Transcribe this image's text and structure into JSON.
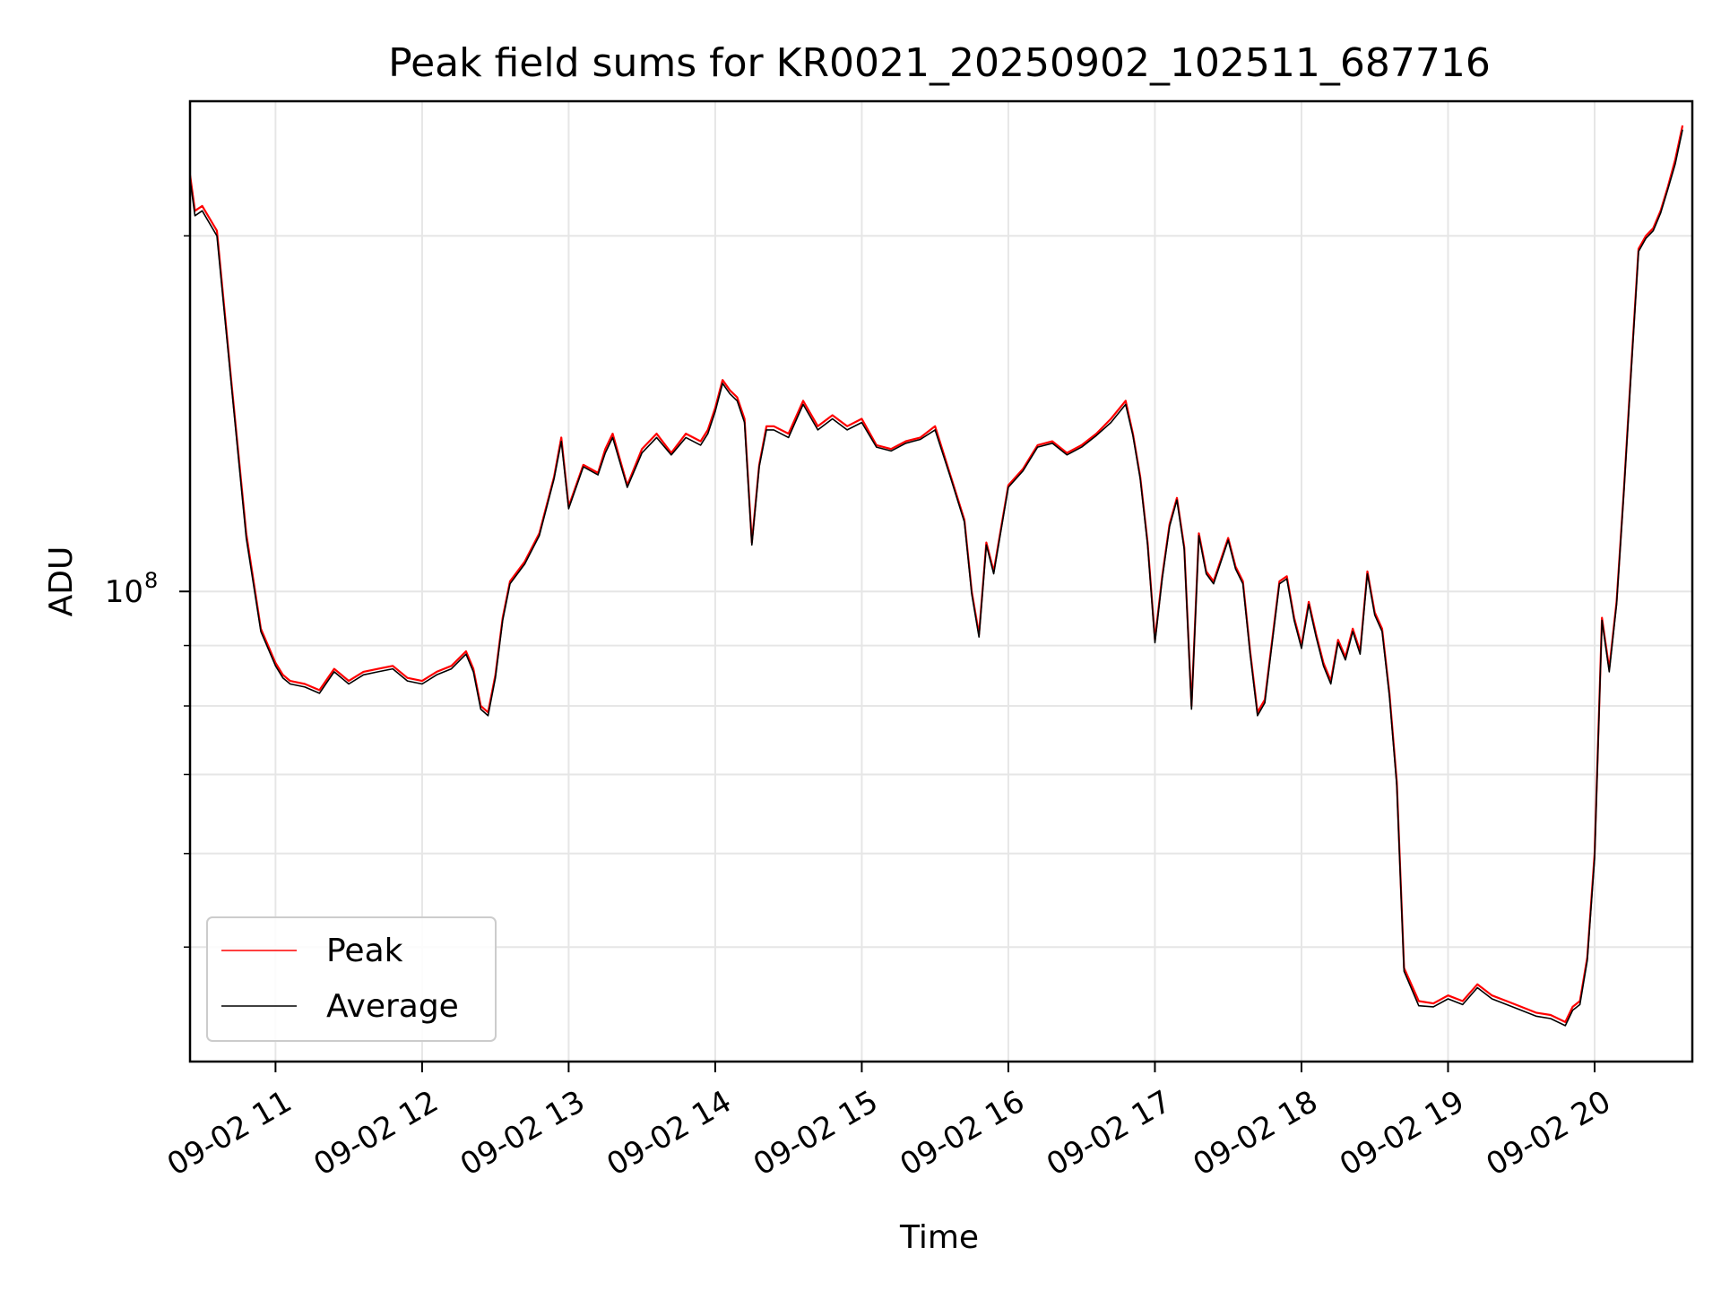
{
  "chart_data": {
    "type": "line",
    "title": "Peak field sums for KR0021_20250902_102511_687716",
    "xlabel": "Time",
    "ylabel": "ADU",
    "y_scale": "log",
    "x_range": [
      "09-02 10:25",
      "09-02 20:40"
    ],
    "ylim": [
      40000000,
      260000000
    ],
    "x_ticks": [
      "09-02 11",
      "09-02 12",
      "09-02 13",
      "09-02 14",
      "09-02 15",
      "09-02 16",
      "09-02 17",
      "09-02 18",
      "09-02 19",
      "09-02 20"
    ],
    "x_tick_hours": [
      11,
      12,
      13,
      14,
      15,
      16,
      17,
      18,
      19,
      20
    ],
    "y_major_tick": {
      "value": 100000000,
      "base": "10",
      "exp": "8"
    },
    "y_minor_ticks": [
      50000000,
      60000000,
      70000000,
      80000000,
      90000000,
      200000000
    ],
    "grid": true,
    "legend_position": "lower-left",
    "legend": [
      {
        "label": "Peak",
        "color": "#ff0000"
      },
      {
        "label": "Average",
        "color": "#000000"
      }
    ],
    "x_hours": [
      10.417,
      10.45,
      10.5,
      10.6,
      10.7,
      10.8,
      10.9,
      11.0,
      11.05,
      11.1,
      11.2,
      11.3,
      11.4,
      11.5,
      11.6,
      11.7,
      11.8,
      11.9,
      12.0,
      12.1,
      12.2,
      12.3,
      12.35,
      12.4,
      12.45,
      12.5,
      12.55,
      12.6,
      12.7,
      12.8,
      12.9,
      12.95,
      13.0,
      13.1,
      13.2,
      13.25,
      13.3,
      13.4,
      13.5,
      13.6,
      13.7,
      13.8,
      13.9,
      13.95,
      14.0,
      14.05,
      14.1,
      14.15,
      14.2,
      14.25,
      14.3,
      14.35,
      14.4,
      14.5,
      14.6,
      14.7,
      14.8,
      14.9,
      15.0,
      15.1,
      15.2,
      15.3,
      15.4,
      15.5,
      15.6,
      15.7,
      15.75,
      15.8,
      15.85,
      15.9,
      16.0,
      16.1,
      16.2,
      16.3,
      16.4,
      16.5,
      16.6,
      16.7,
      16.8,
      16.85,
      16.9,
      16.95,
      17.0,
      17.05,
      17.1,
      17.15,
      17.2,
      17.25,
      17.3,
      17.35,
      17.4,
      17.5,
      17.55,
      17.6,
      17.65,
      17.7,
      17.75,
      17.8,
      17.85,
      17.9,
      17.95,
      18.0,
      18.05,
      18.1,
      18.15,
      18.2,
      18.25,
      18.3,
      18.35,
      18.4,
      18.45,
      18.5,
      18.55,
      18.6,
      18.65,
      18.7,
      18.8,
      18.9,
      19.0,
      19.1,
      19.2,
      19.3,
      19.4,
      19.5,
      19.6,
      19.7,
      19.8,
      19.85,
      19.9,
      19.95,
      20.0,
      20.05,
      20.1,
      20.15,
      20.2,
      20.25,
      20.3,
      20.35,
      20.4,
      20.45,
      20.5,
      20.55,
      20.6,
      20.667
    ],
    "series": [
      {
        "name": "Peak",
        "color": "#ff0000",
        "values": [
          225000000,
          210000000,
          212000000,
          202000000,
          150000000,
          112000000,
          93000000,
          87000000,
          85000000,
          84000000,
          83500000,
          82500000,
          86000000,
          84000000,
          85500000,
          86000000,
          86500000,
          84500000,
          84000000,
          85500000,
          86500000,
          89000000,
          86000000,
          80000000,
          79000000,
          85000000,
          95000000,
          102000000,
          106000000,
          112000000,
          125000000,
          135000000,
          118000000,
          128000000,
          126000000,
          132000000,
          136000000,
          123000000,
          132000000,
          136000000,
          131000000,
          136000000,
          134000000,
          137000000,
          143000000,
          151000000,
          148000000,
          146000000,
          140000000,
          110000000,
          128000000,
          138000000,
          138000000,
          136000000,
          145000000,
          138000000,
          141000000,
          138000000,
          140000000,
          133000000,
          132000000,
          134000000,
          135000000,
          138000000,
          126000000,
          115000000,
          100000000,
          92000000,
          110000000,
          104000000,
          123000000,
          127000000,
          133000000,
          134000000,
          131000000,
          133000000,
          136000000,
          140000000,
          145000000,
          136000000,
          125000000,
          110000000,
          91000000,
          103000000,
          114000000,
          120000000,
          109000000,
          80000000,
          112000000,
          104000000,
          102000000,
          111000000,
          105000000,
          102000000,
          89000000,
          79000000,
          81000000,
          91000000,
          102000000,
          103000000,
          95000000,
          90000000,
          98000000,
          92000000,
          87000000,
          84000000,
          91000000,
          88000000,
          93000000,
          89000000,
          104000000,
          96000000,
          93000000,
          82000000,
          69000000,
          48000000,
          45000000,
          44800000,
          45500000,
          45000000,
          46500000,
          45500000,
          45000000,
          44500000,
          44000000,
          43800000,
          43200000,
          44500000,
          45000000,
          49000000,
          60000000,
          95000000,
          86000000,
          98000000,
          122000000,
          155000000,
          195000000,
          200000000,
          203000000,
          210000000,
          220000000,
          232000000,
          248000000
        ]
      },
      {
        "name": "Average",
        "color": "#000000",
        "values": [
          223000000,
          208000000,
          210000000,
          200000000,
          149000000,
          111000000,
          92500000,
          86500000,
          84500000,
          83500000,
          83000000,
          82000000,
          85500000,
          83500000,
          85000000,
          85500000,
          86000000,
          84000000,
          83500000,
          85000000,
          86000000,
          88500000,
          85500000,
          79500000,
          78500000,
          84500000,
          94500000,
          101500000,
          105500000,
          111500000,
          124500000,
          134000000,
          117500000,
          127500000,
          125500000,
          131000000,
          135000000,
          122500000,
          131000000,
          135000000,
          130500000,
          135000000,
          133000000,
          136000000,
          142000000,
          150000000,
          147000000,
          145000000,
          139000000,
          109500000,
          127500000,
          137000000,
          137000000,
          135000000,
          144000000,
          137000000,
          140000000,
          137000000,
          139000000,
          132500000,
          131500000,
          133500000,
          134500000,
          137000000,
          125500000,
          114500000,
          99500000,
          91500000,
          109500000,
          103500000,
          122500000,
          126500000,
          132500000,
          133500000,
          130500000,
          132500000,
          135500000,
          139000000,
          144000000,
          135500000,
          124500000,
          109500000,
          90500000,
          102500000,
          113500000,
          119500000,
          108500000,
          79500000,
          111500000,
          103500000,
          101500000,
          110500000,
          104500000,
          101500000,
          88500000,
          78500000,
          80500000,
          90500000,
          101500000,
          102500000,
          94500000,
          89500000,
          97500000,
          91500000,
          86500000,
          83500000,
          90500000,
          87500000,
          92500000,
          88500000,
          103500000,
          95500000,
          92500000,
          81500000,
          68500000,
          47700000,
          44600000,
          44500000,
          45200000,
          44700000,
          46200000,
          45200000,
          44700000,
          44200000,
          43700000,
          43500000,
          42900000,
          44200000,
          44700000,
          48700000,
          59500000,
          94500000,
          85500000,
          97500000,
          121500000,
          154000000,
          194000000,
          199000000,
          202000000,
          209000000,
          219000000,
          230000000,
          246000000
        ]
      }
    ]
  }
}
